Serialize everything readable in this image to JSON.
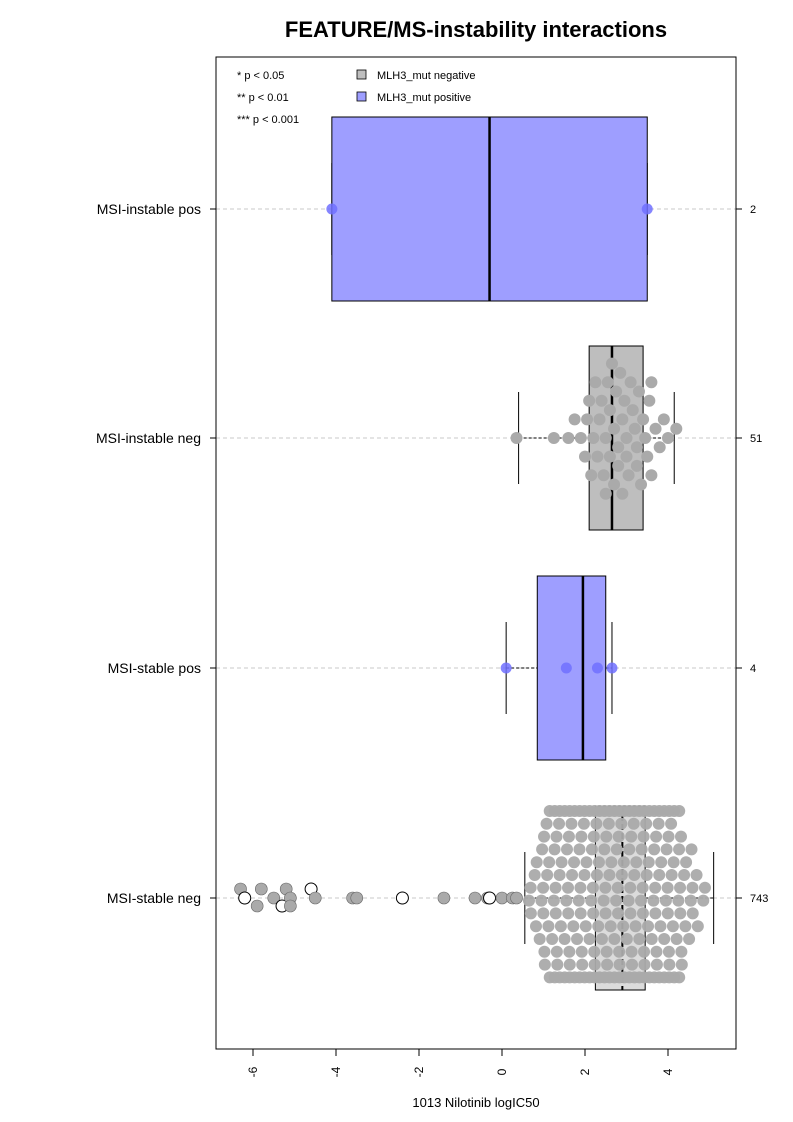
{
  "chart_data": {
    "type": "boxplot",
    "title": "FEATURE/MS-instability interactions",
    "xlabel": "1013 Nilotinib logIC50",
    "xlim": [
      -7,
      5.5
    ],
    "x_ticks": [
      -6,
      -4,
      -2,
      0,
      2,
      4
    ],
    "x_tick_labels": [
      "-6",
      "-4",
      "-2",
      "0",
      "2",
      "4"
    ],
    "grid": "dashed horizontal guide per group",
    "legend_position": "top-left",
    "significance_notes": [
      "* p < 0.05",
      "** p < 0.01",
      "*** p < 0.001"
    ],
    "legend": [
      {
        "label": "MLH3_mut negative",
        "color": "#bebebe"
      },
      {
        "label": "MLH3_mut positive",
        "color": "#9e9eff"
      }
    ],
    "colors": {
      "negative_box": "#bebebe",
      "positive_box": "#9e9eff",
      "negative_point": "#aaaaaa",
      "positive_point": "#7070ff"
    },
    "groups": [
      {
        "label": "MSI-instable pos",
        "count": "2",
        "mutation": "positive",
        "whisker_low": -4.1,
        "q1": -4.1,
        "median": -0.3,
        "q3": 3.5,
        "whisker_high": 3.5,
        "points": [
          -4.1,
          3.5
        ]
      },
      {
        "label": "MSI-instable neg",
        "count": "51",
        "mutation": "negative",
        "whisker_low": 0.4,
        "q1": 2.1,
        "median": 2.65,
        "q3": 3.4,
        "whisker_high": 4.15,
        "points": [
          0.35,
          1.25,
          1.6,
          1.75,
          1.9,
          2.0,
          2.1,
          2.2,
          2.25,
          2.3,
          2.35,
          2.4,
          2.45,
          2.5,
          2.55,
          2.6,
          2.6,
          2.65,
          2.7,
          2.7,
          2.75,
          2.8,
          2.8,
          2.85,
          2.9,
          2.95,
          3.0,
          3.05,
          3.1,
          3.15,
          3.2,
          3.25,
          3.3,
          3.35,
          3.4,
          3.45,
          3.5,
          3.55,
          3.6,
          3.7,
          3.8,
          3.9,
          4.0,
          4.2,
          2.15,
          2.05,
          2.5,
          2.9,
          3.25,
          3.6,
          3.0
        ]
      },
      {
        "label": "MSI-stable pos",
        "count": "4",
        "mutation": "positive",
        "whisker_low": 0.1,
        "q1": 0.85,
        "median": 1.95,
        "q3": 2.5,
        "whisker_high": 2.65,
        "points": [
          0.1,
          1.55,
          2.3,
          2.65
        ]
      },
      {
        "label": "MSI-stable neg",
        "count": "743",
        "mutation": "negative",
        "whisker_low": 0.55,
        "q1": 2.25,
        "median": 2.9,
        "q3": 3.45,
        "whisker_high": 5.1,
        "outliers": [
          -6.3,
          -6.2,
          -5.9,
          -5.8,
          -5.5,
          -5.3,
          -5.2,
          -5.1,
          -5.1,
          -4.6,
          -4.5,
          -3.6,
          -3.5,
          -2.4,
          -1.4,
          -0.65,
          -0.35,
          -0.3,
          0.0,
          0.25,
          0.35
        ],
        "bulk": {
          "min": 0.55,
          "max": 5.1,
          "dense_min": 1.2,
          "dense_max": 4.3
        }
      }
    ]
  }
}
